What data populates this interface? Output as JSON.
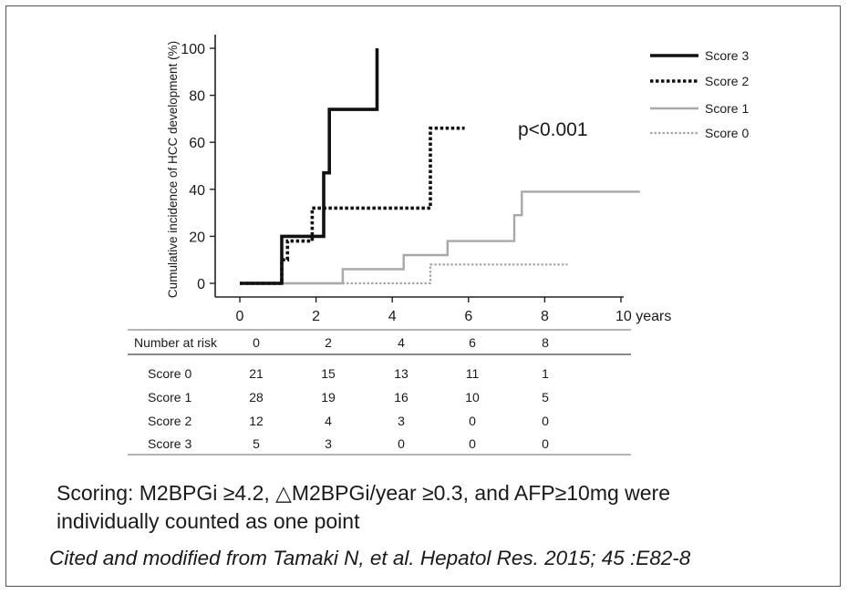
{
  "chart_data": {
    "type": "line",
    "step": true,
    "ylabel": "Cumulative incidence of HCC development (%)",
    "x_tick_labels": [
      "0",
      "2",
      "4",
      "6",
      "8",
      "10 years"
    ],
    "x_ticks": [
      0,
      2,
      4,
      6,
      8,
      10
    ],
    "y_ticks": [
      0,
      20,
      40,
      60,
      80,
      100
    ],
    "xlim": [
      0,
      10.5
    ],
    "ylim": [
      0,
      100
    ],
    "legend_position": "top-right",
    "annotation": "p<0.001",
    "series": [
      {
        "name": "Score 3",
        "style": "solid-thick",
        "color": "#111111",
        "points": [
          [
            0,
            0
          ],
          [
            1.1,
            0
          ],
          [
            1.1,
            20
          ],
          [
            2.2,
            20
          ],
          [
            2.2,
            47
          ],
          [
            2.35,
            47
          ],
          [
            2.35,
            74
          ],
          [
            3.6,
            74
          ],
          [
            3.6,
            100
          ]
        ]
      },
      {
        "name": "Score 2",
        "style": "dotted-thick",
        "color": "#111111",
        "points": [
          [
            0,
            0
          ],
          [
            1.1,
            0
          ],
          [
            1.1,
            10
          ],
          [
            1.25,
            10
          ],
          [
            1.25,
            18
          ],
          [
            1.9,
            18
          ],
          [
            1.9,
            32
          ],
          [
            5.0,
            32
          ],
          [
            5.0,
            66
          ],
          [
            5.9,
            66
          ]
        ]
      },
      {
        "name": "Score 1",
        "style": "solid",
        "color": "#a8a8a8",
        "points": [
          [
            0,
            0
          ],
          [
            2.7,
            0
          ],
          [
            2.7,
            6
          ],
          [
            4.3,
            6
          ],
          [
            4.3,
            12
          ],
          [
            5.45,
            12
          ],
          [
            5.45,
            18
          ],
          [
            7.2,
            18
          ],
          [
            7.2,
            29
          ],
          [
            7.4,
            29
          ],
          [
            7.4,
            39
          ],
          [
            10.5,
            39
          ]
        ]
      },
      {
        "name": "Score 0",
        "style": "dotted",
        "color": "#a8a8a8",
        "points": [
          [
            0,
            0
          ],
          [
            5.0,
            0
          ],
          [
            5.0,
            8
          ],
          [
            8.6,
            8
          ]
        ]
      }
    ],
    "risk_table": {
      "header_label": "Number at risk",
      "columns": [
        "0",
        "2",
        "4",
        "6",
        "8"
      ],
      "rows": [
        {
          "label": "Score 0",
          "values": [
            "21",
            "15",
            "13",
            "11",
            "1"
          ]
        },
        {
          "label": "Score 1",
          "values": [
            "28",
            "19",
            "16",
            "10",
            "5"
          ]
        },
        {
          "label": "Score 2",
          "values": [
            "12",
            "4",
            "3",
            "0",
            "0"
          ]
        },
        {
          "label": "Score 3",
          "values": [
            "5",
            "3",
            "0",
            "0",
            "0"
          ]
        }
      ]
    }
  },
  "caption": {
    "line1": "Scoring: M2BPGi ≥4.2,   △M2BPGi/year ≥0.3, and AFP≥10mg were",
    "line2": "individually counted as one point"
  },
  "citation": "Cited and modified from Tamaki N, et al. Hepatol Res. 2015; 45 :E82-8"
}
